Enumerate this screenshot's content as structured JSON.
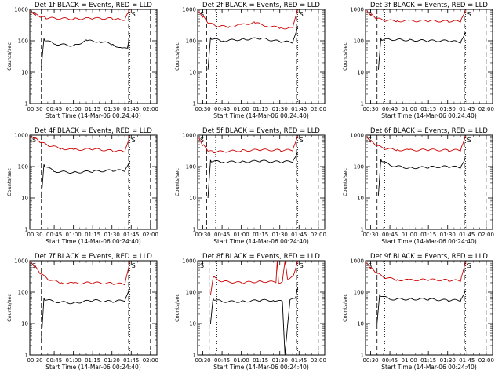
{
  "chart_data": [
    {
      "type": "line",
      "title": "Det 1f BLACK = Events, RED = LLD",
      "xlabel": "Start Time (14-Mar-06 00:24:40)",
      "ylabel": "Counts/sec",
      "ylim": [
        1,
        1000
      ],
      "yscale": "log",
      "xlim": [
        "00:26",
        "02:05"
      ],
      "x_ticks": [
        "00:30",
        "00:45",
        "01:00",
        "01:15",
        "01:30",
        "01:45",
        "02:00"
      ],
      "y_ticks": [
        "1",
        "10",
        "100",
        "1000"
      ],
      "annotation": "S",
      "vlines": {
        "dashed": [
          "00:35",
          "01:43",
          "02:00"
        ],
        "dotted": [
          "00:41",
          "01:44"
        ]
      },
      "series": [
        {
          "color": "#000000",
          "x": [
            "00:35",
            "00:37",
            "00:45",
            "01:00",
            "01:10",
            "01:20",
            "01:30",
            "01:38",
            "01:42",
            "01:44"
          ],
          "values": [
            15,
            110,
            80,
            70,
            100,
            95,
            80,
            55,
            60,
            150
          ]
        },
        {
          "color": "#cc0000",
          "x": [
            "00:27",
            "00:30",
            "00:34",
            "00:38",
            "00:45",
            "01:00",
            "01:15",
            "01:30",
            "01:35",
            "01:40",
            "01:44"
          ],
          "values": [
            900,
            700,
            580,
            540,
            520,
            500,
            520,
            510,
            490,
            470,
            1000
          ]
        }
      ]
    },
    {
      "type": "line",
      "title": "Det 2f BLACK = Events, RED = LLD",
      "xlabel": "Start Time (14-Mar-06 00:24:40)",
      "ylabel": "Counts/sec",
      "ylim": [
        1,
        1000
      ],
      "yscale": "log",
      "xlim": [
        "00:26",
        "02:05"
      ],
      "x_ticks": [
        "00:30",
        "00:45",
        "01:00",
        "01:15",
        "01:30",
        "01:45",
        "02:00"
      ],
      "y_ticks": [
        "1",
        "10",
        "100",
        "1000"
      ],
      "annotation": "S",
      "vlines": {
        "dashed": [
          "00:33",
          "01:43",
          "02:00"
        ],
        "dotted": [
          "00:41",
          "01:44"
        ]
      },
      "series": [
        {
          "color": "#000000",
          "x": [
            "00:34",
            "00:36",
            "00:45",
            "01:00",
            "01:15",
            "01:30",
            "01:40",
            "01:44"
          ],
          "values": [
            12,
            120,
            100,
            110,
            120,
            95,
            90,
            300
          ]
        },
        {
          "color": "#cc0000",
          "x": [
            "00:27",
            "00:30",
            "00:34",
            "00:40",
            "00:50",
            "01:00",
            "01:10",
            "01:20",
            "01:30",
            "01:40",
            "01:44"
          ],
          "values": [
            850,
            600,
            380,
            300,
            280,
            320,
            380,
            300,
            260,
            250,
            1000
          ]
        }
      ]
    },
    {
      "type": "line",
      "title": "Det 3f BLACK = Events, RED = LLD",
      "xlabel": "Start Time (14-Mar-06 00:24:40)",
      "ylabel": "Counts/sec",
      "ylim": [
        1,
        1000
      ],
      "yscale": "log",
      "xlim": [
        "00:26",
        "02:05"
      ],
      "x_ticks": [
        "00:30",
        "00:45",
        "01:00",
        "01:15",
        "01:30",
        "01:45",
        "02:00"
      ],
      "y_ticks": [
        "1",
        "10",
        "100",
        "1000"
      ],
      "annotation": "S",
      "vlines": {
        "dashed": [
          "00:35",
          "01:43",
          "02:00"
        ],
        "dotted": [
          "00:41",
          "01:44"
        ]
      },
      "series": [
        {
          "color": "#000000",
          "x": [
            "00:36",
            "00:38",
            "00:45",
            "01:00",
            "01:15",
            "01:30",
            "01:40",
            "01:44"
          ],
          "values": [
            12,
            110,
            110,
            105,
            100,
            100,
            90,
            200
          ]
        },
        {
          "color": "#cc0000",
          "x": [
            "00:27",
            "00:30",
            "00:34",
            "00:40",
            "00:50",
            "01:00",
            "01:15",
            "01:30",
            "01:40",
            "01:44"
          ],
          "values": [
            900,
            700,
            530,
            450,
            430,
            430,
            430,
            420,
            420,
            1000
          ]
        }
      ]
    },
    {
      "type": "line",
      "title": "Det 4f BLACK = Events, RED = LLD",
      "xlabel": "Start Time (14-Mar-06 00:24:40)",
      "ylabel": "Counts/sec",
      "ylim": [
        1,
        1000
      ],
      "yscale": "log",
      "xlim": [
        "00:26",
        "02:05"
      ],
      "x_ticks": [
        "00:30",
        "00:45",
        "01:00",
        "01:15",
        "01:30",
        "01:45",
        "02:00"
      ],
      "y_ticks": [
        "1",
        "10",
        "100",
        "1000"
      ],
      "annotation": "S",
      "vlines": {
        "dashed": [
          "00:35",
          "01:43",
          "02:00"
        ],
        "dotted": [
          "00:41",
          "01:44"
        ]
      },
      "series": [
        {
          "color": "#000000",
          "x": [
            "00:35",
            "00:37",
            "00:45",
            "01:00",
            "01:15",
            "01:30",
            "01:40",
            "01:44"
          ],
          "values": [
            10,
            110,
            70,
            65,
            70,
            75,
            75,
            160
          ]
        },
        {
          "color": "#cc0000",
          "x": [
            "00:27",
            "00:30",
            "00:34",
            "00:40",
            "00:50",
            "01:00",
            "01:15",
            "01:30",
            "01:40",
            "01:44"
          ],
          "values": [
            950,
            800,
            600,
            480,
            380,
            340,
            360,
            320,
            300,
            1000
          ]
        }
      ]
    },
    {
      "type": "line",
      "title": "Det 5f BLACK = Events, RED = LLD",
      "xlabel": "Start Time (14-Mar-06 00:24:40)",
      "ylabel": "Counts/sec",
      "ylim": [
        1,
        1000
      ],
      "yscale": "log",
      "xlim": [
        "00:26",
        "02:05"
      ],
      "x_ticks": [
        "00:30",
        "00:45",
        "01:00",
        "01:15",
        "01:30",
        "01:45",
        "02:00"
      ],
      "y_ticks": [
        "1",
        "10",
        "100",
        "1000"
      ],
      "annotation": "S",
      "vlines": {
        "dashed": [
          "00:33",
          "01:43",
          "02:00"
        ],
        "dotted": [
          "00:40",
          "01:44"
        ]
      },
      "series": [
        {
          "color": "#000000",
          "x": [
            "00:34",
            "00:36",
            "00:45",
            "01:00",
            "01:15",
            "01:30",
            "01:40",
            "01:44"
          ],
          "values": [
            10,
            150,
            140,
            140,
            150,
            140,
            145,
            300
          ]
        },
        {
          "color": "#cc0000",
          "x": [
            "00:27",
            "00:30",
            "00:34",
            "00:38",
            "00:45",
            "01:00",
            "01:15",
            "01:30",
            "01:40",
            "01:44"
          ],
          "values": [
            800,
            500,
            320,
            290,
            300,
            320,
            340,
            330,
            330,
            1000
          ]
        }
      ]
    },
    {
      "type": "line",
      "title": "Det 6f BLACK = Events, RED = LLD",
      "xlabel": "Start Time (14-Mar-06 00:24:40)",
      "ylabel": "Counts/sec",
      "ylim": [
        1,
        1000
      ],
      "yscale": "log",
      "xlim": [
        "00:26",
        "02:05"
      ],
      "x_ticks": [
        "00:30",
        "00:45",
        "01:00",
        "01:15",
        "01:30",
        "01:45",
        "02:00"
      ],
      "y_ticks": [
        "1",
        "10",
        "100",
        "1000"
      ],
      "annotation": "S",
      "vlines": {
        "dashed": [
          "00:35",
          "01:43",
          "02:00"
        ],
        "dotted": [
          "00:41",
          "01:44"
        ]
      },
      "series": [
        {
          "color": "#000000",
          "x": [
            "00:36",
            "00:38",
            "00:45",
            "01:00",
            "01:15",
            "01:30",
            "01:40",
            "01:44"
          ],
          "values": [
            12,
            160,
            110,
            90,
            95,
            100,
            95,
            200
          ]
        },
        {
          "color": "#cc0000",
          "x": [
            "00:27",
            "00:30",
            "00:34",
            "00:40",
            "00:50",
            "01:00",
            "01:15",
            "01:30",
            "01:40",
            "01:44"
          ],
          "values": [
            900,
            650,
            480,
            380,
            340,
            330,
            340,
            330,
            330,
            1000
          ]
        }
      ]
    },
    {
      "type": "line",
      "title": "Det 7f BLACK = Events, RED = LLD",
      "xlabel": "Start Time (14-Mar-06 00:24:40)",
      "ylabel": "Counts/sec",
      "ylim": [
        1,
        1000
      ],
      "yscale": "log",
      "xlim": [
        "00:26",
        "02:05"
      ],
      "x_ticks": [
        "00:30",
        "00:45",
        "01:00",
        "01:15",
        "01:30",
        "01:45",
        "02:00"
      ],
      "y_ticks": [
        "1",
        "10",
        "100",
        "1000"
      ],
      "annotation": "S",
      "vlines": {
        "dashed": [
          "00:35",
          "01:43",
          "02:00"
        ],
        "dotted": [
          "00:41",
          "01:44"
        ]
      },
      "series": [
        {
          "color": "#000000",
          "x": [
            "00:35",
            "00:37",
            "00:45",
            "01:00",
            "01:15",
            "01:30",
            "01:40",
            "01:44"
          ],
          "values": [
            3,
            60,
            50,
            45,
            55,
            50,
            55,
            150
          ]
        },
        {
          "color": "#cc0000",
          "x": [
            "00:27",
            "00:30",
            "00:34",
            "00:40",
            "00:50",
            "01:00",
            "01:15",
            "01:30",
            "01:40",
            "01:44"
          ],
          "values": [
            900,
            650,
            400,
            260,
            200,
            190,
            200,
            190,
            180,
            1000
          ]
        }
      ]
    },
    {
      "type": "line",
      "title": "Det 8f BLACK = Events, RED = LLD",
      "xlabel": "Start Time (14-Mar-06 00:24:40)",
      "ylabel": "Counts/sec",
      "ylim": [
        1,
        1000
      ],
      "yscale": "log",
      "xlim": [
        "00:26",
        "02:05"
      ],
      "x_ticks": [
        "00:30",
        "00:45",
        "01:00",
        "01:15",
        "01:30",
        "01:45",
        "02:00"
      ],
      "y_ticks": [
        "1",
        "10",
        "100",
        "1000"
      ],
      "annotation": "S",
      "vlines": {
        "dashed": [
          "00:35",
          "01:43",
          "02:00"
        ],
        "dotted": [
          "00:41",
          "01:44"
        ]
      },
      "series": [
        {
          "color": "#000000",
          "x": [
            "00:36",
            "00:38",
            "00:45",
            "01:00",
            "01:15",
            "01:25",
            "01:32",
            "01:34",
            "01:38",
            "01:42",
            "01:44"
          ],
          "values": [
            10,
            60,
            50,
            50,
            55,
            55,
            50,
            1,
            60,
            60,
            150
          ]
        },
        {
          "color": "#cc0000",
          "x": [
            "00:36",
            "00:38",
            "00:45",
            "01:00",
            "01:15",
            "01:27",
            "01:28",
            "01:29",
            "01:32",
            "01:34",
            "01:36",
            "01:40",
            "01:44"
          ],
          "values": [
            80,
            300,
            220,
            200,
            220,
            210,
            1000,
            200,
            220,
            1000,
            250,
            300,
            1000
          ]
        }
      ]
    },
    {
      "type": "line",
      "title": "Det 9f BLACK = Events, RED = LLD",
      "xlabel": "Start Time (14-Mar-06 00:24:40)",
      "ylabel": "Counts/sec",
      "ylim": [
        1,
        1000
      ],
      "yscale": "log",
      "xlim": [
        "00:26",
        "02:05"
      ],
      "x_ticks": [
        "00:30",
        "00:45",
        "01:00",
        "01:15",
        "01:30",
        "01:45",
        "02:00"
      ],
      "y_ticks": [
        "1",
        "10",
        "100",
        "1000"
      ],
      "annotation": "S",
      "vlines": {
        "dashed": [
          "00:35",
          "01:43",
          "02:00"
        ],
        "dotted": [
          "00:41",
          "01:44"
        ]
      },
      "series": [
        {
          "color": "#000000",
          "x": [
            "00:35",
            "00:37",
            "00:45",
            "01:00",
            "01:15",
            "01:30",
            "01:40",
            "01:44"
          ],
          "values": [
            10,
            80,
            60,
            60,
            60,
            55,
            55,
            120
          ]
        },
        {
          "color": "#cc0000",
          "x": [
            "00:27",
            "00:30",
            "00:34",
            "00:40",
            "00:50",
            "01:00",
            "01:15",
            "01:30",
            "01:40",
            "01:44"
          ],
          "values": [
            850,
            600,
            420,
            300,
            250,
            240,
            250,
            240,
            230,
            1000
          ]
        }
      ]
    }
  ]
}
